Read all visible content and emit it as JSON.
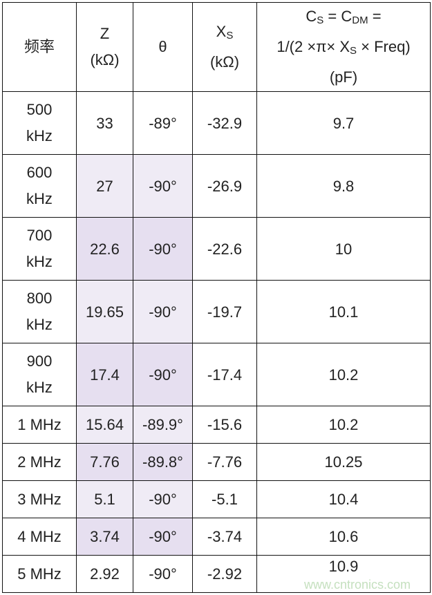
{
  "header": {
    "freq": "频率",
    "z": "Z",
    "z_unit": "(kΩ)",
    "theta": "θ",
    "xs": "X",
    "xs_sub": "S",
    "xs_unit": "(kΩ)",
    "cs_line1_a": "C",
    "cs_line1_sub1": "S",
    "cs_line1_b": " = C",
    "cs_line1_sub2": "DM",
    "cs_line1_c": " =",
    "cs_line2_a": "1/(2 ×π× X",
    "cs_line2_sub": "S",
    "cs_line2_b": " × Freq)",
    "cs_unit": "(pF)"
  },
  "rows": [
    {
      "freq": "500 kHz",
      "z": "33",
      "theta": "-89°",
      "xs": "-32.9",
      "cs": "9.7",
      "shade": "none"
    },
    {
      "freq": "600 kHz",
      "z": "27",
      "theta": "-90°",
      "xs": "-26.9",
      "cs": "9.8",
      "shade": "light"
    },
    {
      "freq": "700 kHz",
      "z": "22.6",
      "theta": "-90°",
      "xs": "-22.6",
      "cs": "10",
      "shade": "dark"
    },
    {
      "freq": "800 kHz",
      "z": "19.65",
      "theta": "-90°",
      "xs": "-19.7",
      "cs": "10.1",
      "shade": "light"
    },
    {
      "freq": "900 kHz",
      "z": "17.4",
      "theta": "-90°",
      "xs": "-17.4",
      "cs": "10.2",
      "shade": "dark"
    },
    {
      "freq": "1 MHz",
      "z": "15.64",
      "theta": "-89.9°",
      "xs": "-15.6",
      "cs": "10.2",
      "shade": "light"
    },
    {
      "freq": "2 MHz",
      "z": "7.76",
      "theta": "-89.8°",
      "xs": "-7.76",
      "cs": "10.25",
      "shade": "dark"
    },
    {
      "freq": "3 MHz",
      "z": "5.1",
      "theta": "-90°",
      "xs": "-5.1",
      "cs": "10.4",
      "shade": "light"
    },
    {
      "freq": "4 MHz",
      "z": "3.74",
      "theta": "-90°",
      "xs": "-3.74",
      "cs": "10.6",
      "shade": "dark"
    },
    {
      "freq": "5 MHz",
      "z": "2.92",
      "theta": "-90°",
      "xs": "-2.92",
      "cs": "10.9",
      "shade": "none"
    }
  ],
  "colors": {
    "light": "#efebf5",
    "dark": "#e6dff0"
  },
  "watermark": "www.cntronics.com"
}
